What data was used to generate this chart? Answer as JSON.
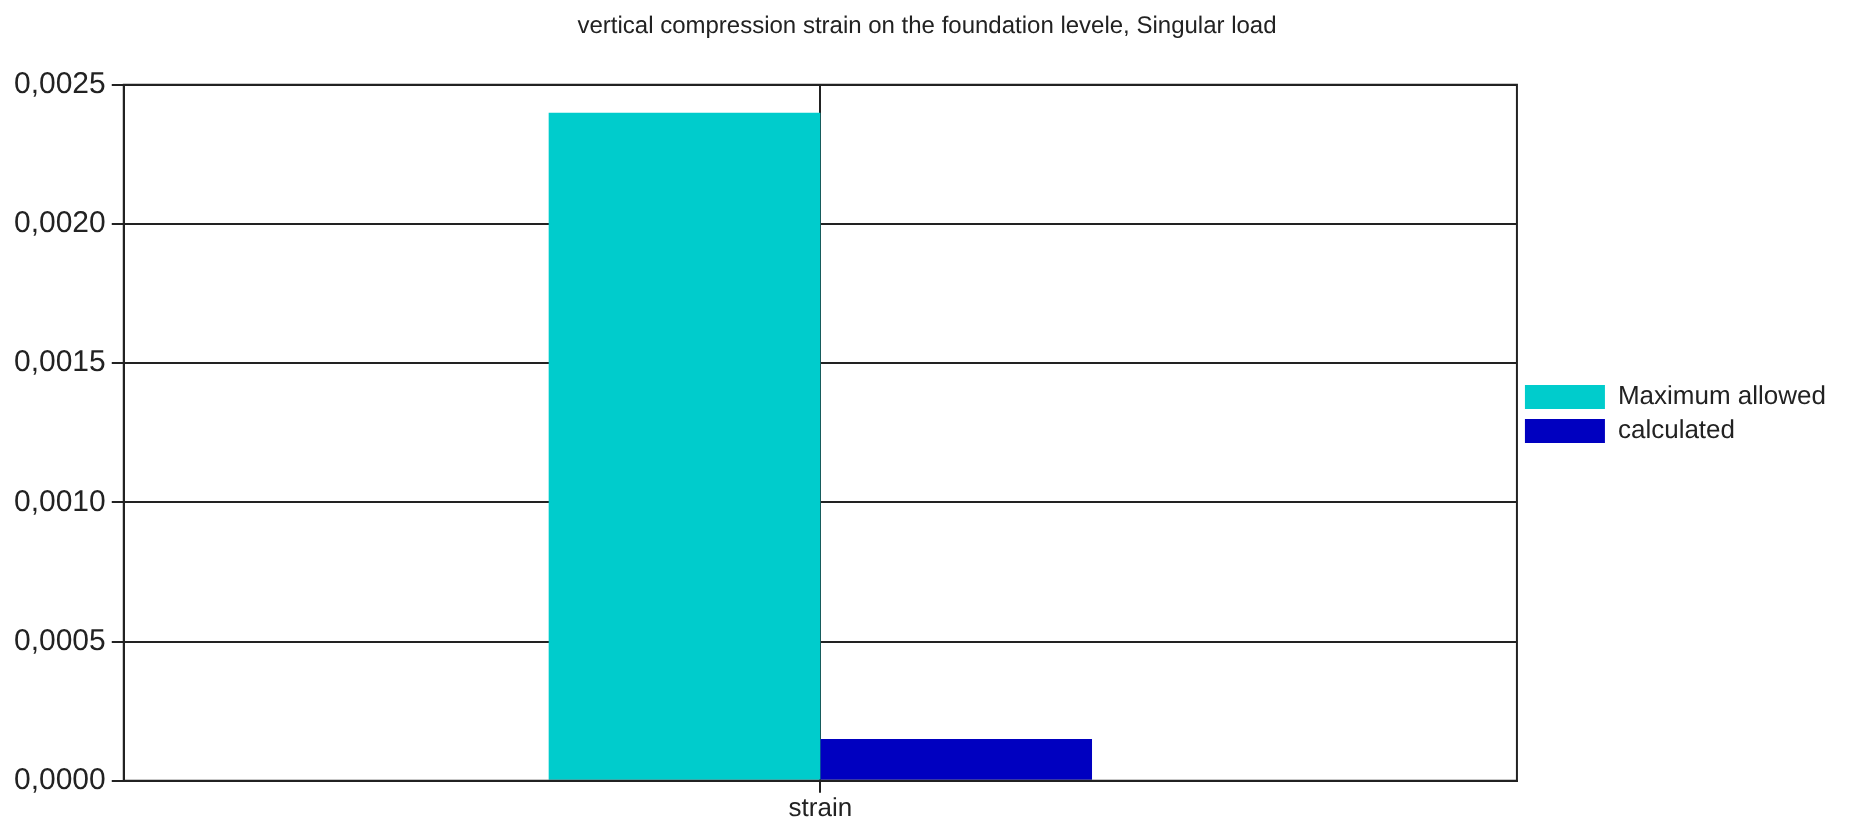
{
  "chart_data": {
    "type": "bar",
    "title": "vertical compression strain on the foundation levele, Singular load",
    "categories": [
      "strain"
    ],
    "series": [
      {
        "name": "Maximum allowed",
        "color": "#00cccc",
        "values": [
          0.0024
        ]
      },
      {
        "name": "calculated",
        "color": "#0000c0",
        "values": [
          0.00015
        ]
      }
    ],
    "ylim": [
      0,
      0.0025
    ],
    "yticks": [
      {
        "value": 0,
        "label": "0,0000"
      },
      {
        "value": 0.0005,
        "label": "0,0005"
      },
      {
        "value": 0.001,
        "label": "0,0010"
      },
      {
        "value": 0.0015,
        "label": "0,0015"
      },
      {
        "value": 0.002,
        "label": "0,0020"
      },
      {
        "value": 0.0025,
        "label": "0,0025"
      }
    ],
    "grid": true,
    "legend": "right"
  }
}
